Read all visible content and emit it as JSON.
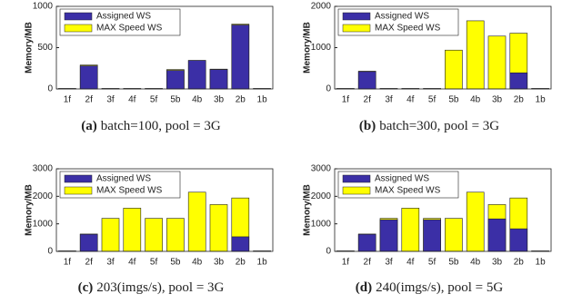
{
  "chart_data": [
    {
      "type": "bar",
      "label": "(a)",
      "caption": "batch=100, pool = 3G",
      "ylabel": "Memory/MB",
      "categories": [
        "1f",
        "2f",
        "3f",
        "4f",
        "5f",
        "5b",
        "4b",
        "3b",
        "2b",
        "1b"
      ],
      "series": [
        {
          "name": "MAX Speed WS",
          "color": "#ffff00",
          "values": [
            5,
            290,
            5,
            5,
            5,
            235,
            345,
            240,
            785,
            5
          ]
        },
        {
          "name": "Assigned WS",
          "color": "#3b2fa6",
          "values": [
            5,
            280,
            5,
            5,
            5,
            225,
            345,
            235,
            775,
            5
          ]
        }
      ],
      "ylim": [
        0,
        1000
      ],
      "yticks": [
        0,
        500,
        1000
      ],
      "legend": "upper left"
    },
    {
      "type": "bar",
      "label": "(b)",
      "caption": "batch=300, pool = 3G",
      "ylabel": "Memory/MB",
      "categories": [
        "1f",
        "2f",
        "3f",
        "4f",
        "5f",
        "5b",
        "4b",
        "3b",
        "2b",
        "1b"
      ],
      "series": [
        {
          "name": "MAX Speed WS",
          "color": "#ffff00",
          "values": [
            10,
            430,
            10,
            10,
            10,
            940,
            1650,
            1280,
            1350,
            10
          ]
        },
        {
          "name": "Assigned WS",
          "color": "#3b2fa6",
          "values": [
            10,
            420,
            10,
            10,
            10,
            0,
            0,
            0,
            390,
            10
          ]
        }
      ],
      "ylim": [
        0,
        2000
      ],
      "yticks": [
        0,
        1000,
        2000
      ],
      "legend": "upper left"
    },
    {
      "type": "bar",
      "label": "(c)",
      "caption": "203(imgs/s), pool = 3G",
      "ylabel": "Memory/MB",
      "categories": [
        "1f",
        "2f",
        "3f",
        "4f",
        "5f",
        "5b",
        "4b",
        "3b",
        "2b",
        "1b"
      ],
      "series": [
        {
          "name": "MAX Speed WS",
          "color": "#ffff00",
          "values": [
            15,
            630,
            1200,
            1570,
            1200,
            1200,
            2150,
            1700,
            1940,
            15
          ]
        },
        {
          "name": "Assigned WS",
          "color": "#3b2fa6",
          "values": [
            15,
            620,
            0,
            0,
            0,
            0,
            0,
            0,
            530,
            15
          ]
        }
      ],
      "ylim": [
        0,
        3000
      ],
      "yticks": [
        0,
        1000,
        2000,
        3000
      ],
      "legend": "upper left"
    },
    {
      "type": "bar",
      "label": "(d)",
      "caption": "240(imgs/s), pool = 5G",
      "ylabel": "Memory/MB",
      "categories": [
        "1f",
        "2f",
        "3f",
        "4f",
        "5f",
        "5b",
        "4b",
        "3b",
        "2b",
        "1b"
      ],
      "series": [
        {
          "name": "MAX Speed WS",
          "color": "#ffff00",
          "values": [
            15,
            630,
            1200,
            1570,
            1200,
            1200,
            2150,
            1700,
            1940,
            15
          ]
        },
        {
          "name": "Assigned WS",
          "color": "#3b2fa6",
          "values": [
            15,
            620,
            1150,
            0,
            1150,
            0,
            0,
            1180,
            820,
            15
          ]
        }
      ],
      "ylim": [
        0,
        3000
      ],
      "yticks": [
        0,
        1000,
        2000,
        3000
      ],
      "legend": "upper left"
    }
  ]
}
